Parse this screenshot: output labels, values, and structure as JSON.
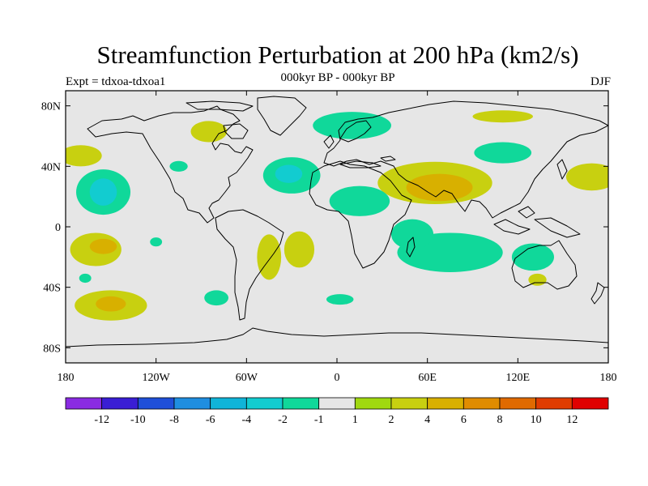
{
  "header": {
    "title": "Streamfunction Perturbation at 200 hPa (km2/s)",
    "subtitle": "000kyr BP - 000kyr BP",
    "experiment": "Expt = tdxoa-tdxoa1",
    "season": "DJF"
  },
  "map": {
    "projection": "cylindrical equidistant",
    "lon_range": [
      -180,
      180
    ],
    "lat_range": [
      -90,
      90
    ],
    "background_color": "#e6e6e6",
    "lat_ticks": [
      {
        "value": 80,
        "label": "80N"
      },
      {
        "value": 40,
        "label": "40N"
      },
      {
        "value": 0,
        "label": "0"
      },
      {
        "value": -40,
        "label": "40S"
      },
      {
        "value": -80,
        "label": "80S"
      }
    ],
    "lon_ticks": [
      {
        "value": -180,
        "label": "180"
      },
      {
        "value": -120,
        "label": "120W"
      },
      {
        "value": -60,
        "label": "60W"
      },
      {
        "value": 0,
        "label": "0"
      },
      {
        "value": 60,
        "label": "60E"
      },
      {
        "value": 120,
        "label": "120E"
      },
      {
        "value": 180,
        "label": "180"
      }
    ]
  },
  "colorbar": {
    "colors": [
      "#8a2be2",
      "#3a1ed4",
      "#1f4fd8",
      "#1f8ee0",
      "#10b4d8",
      "#12ccd0",
      "#10d89a",
      "#e6e6e6",
      "#a0d810",
      "#c8d010",
      "#d8b000",
      "#e08c00",
      "#e06a00",
      "#e03c00",
      "#e00000"
    ],
    "labels": [
      "-12",
      "-10",
      "-8",
      "-6",
      "-4",
      "-2",
      "-1",
      "1",
      "2",
      "4",
      "6",
      "8",
      "10",
      "12"
    ]
  },
  "anomalies": [
    {
      "lon": -170,
      "lat": 47,
      "rx": 14,
      "ry": 7,
      "level": "2"
    },
    {
      "lon": -155,
      "lat": 23,
      "rx": 18,
      "ry": 15,
      "level": "-1"
    },
    {
      "lon": -155,
      "lat": 23,
      "rx": 9,
      "ry": 9,
      "level": "-2"
    },
    {
      "lon": -160,
      "lat": -15,
      "rx": 17,
      "ry": 11,
      "level": "2"
    },
    {
      "lon": -155,
      "lat": -13,
      "rx": 9,
      "ry": 5,
      "level": "4"
    },
    {
      "lon": -150,
      "lat": -52,
      "rx": 24,
      "ry": 10,
      "level": "2"
    },
    {
      "lon": -150,
      "lat": -51,
      "rx": 10,
      "ry": 5,
      "level": "4"
    },
    {
      "lon": -167,
      "lat": -34,
      "rx": 4,
      "ry": 3,
      "level": "-1"
    },
    {
      "lon": -120,
      "lat": -10,
      "rx": 4,
      "ry": 3,
      "level": "-1"
    },
    {
      "lon": -105,
      "lat": 40,
      "rx": 6,
      "ry": 3.5,
      "level": "-1"
    },
    {
      "lon": -30,
      "lat": 34,
      "rx": 19,
      "ry": 12,
      "level": "-1"
    },
    {
      "lon": -32,
      "lat": 35,
      "rx": 9,
      "ry": 6,
      "level": "-2"
    },
    {
      "lon": -85,
      "lat": 63,
      "rx": 12,
      "ry": 7,
      "level": "2"
    },
    {
      "lon": 10,
      "lat": 67,
      "rx": 26,
      "ry": 9,
      "level": "-1"
    },
    {
      "lon": 110,
      "lat": 73,
      "rx": 20,
      "ry": 4,
      "level": "2"
    },
    {
      "lon": 110,
      "lat": 49,
      "rx": 19,
      "ry": 7,
      "level": "-1"
    },
    {
      "lon": 169,
      "lat": 33,
      "rx": 17,
      "ry": 9,
      "level": "2"
    },
    {
      "lon": 65,
      "lat": 29,
      "rx": 38,
      "ry": 14,
      "level": "2"
    },
    {
      "lon": 68,
      "lat": 26,
      "rx": 22,
      "ry": 9,
      "level": "4"
    },
    {
      "lon": 15,
      "lat": 17,
      "rx": 20,
      "ry": 10,
      "level": "-1"
    },
    {
      "lon": 75,
      "lat": -17,
      "rx": 35,
      "ry": 13,
      "level": "-1"
    },
    {
      "lon": 50,
      "lat": -5,
      "rx": 14,
      "ry": 10,
      "level": "-1"
    },
    {
      "lon": 130,
      "lat": -20,
      "rx": 14,
      "ry": 9,
      "level": "-1"
    },
    {
      "lon": -80,
      "lat": -47,
      "rx": 8,
      "ry": 5,
      "level": "-1"
    },
    {
      "lon": 2,
      "lat": -48,
      "rx": 9,
      "ry": 3.5,
      "level": "-1"
    },
    {
      "lon": -45,
      "lat": -20,
      "rx": 8,
      "ry": 15,
      "level": "2"
    },
    {
      "lon": -25,
      "lat": -15,
      "rx": 10,
      "ry": 12,
      "level": "2"
    },
    {
      "lon": 133,
      "lat": -35,
      "rx": 6,
      "ry": 4,
      "level": "2"
    }
  ]
}
